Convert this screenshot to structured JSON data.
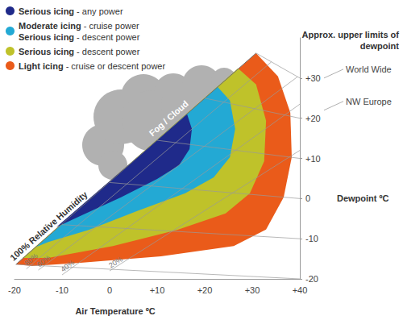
{
  "chart_data": {
    "type": "polygon",
    "xlabel": "Air Temperature ºC",
    "ylabel": "Dewpoint ºC",
    "xlim": [
      -20,
      40
    ],
    "xticks": [
      -20,
      -10,
      0,
      {
        "value": 10,
        "label": "+10"
      },
      {
        "value": 20,
        "label": "+20"
      },
      {
        "value": 30,
        "label": "+30"
      },
      {
        "value": 40,
        "label": "+40"
      }
    ],
    "ylim": [
      -20,
      40
    ],
    "yticks": [
      -20,
      -10,
      0,
      {
        "value": 10,
        "label": "+10"
      },
      {
        "value": 20,
        "label": "+20"
      },
      {
        "value": 30,
        "label": "+30"
      }
    ],
    "legend": "upper left",
    "series": [
      {
        "name": "Serious icing - any power",
        "color": "#1f2a8a",
        "points": [
          [
            -11.2,
            -7.1
          ],
          [
            16.3,
            21.0
          ],
          [
            17.3,
            17.3
          ],
          [
            16.8,
            12.3
          ],
          [
            14.6,
            8.3
          ],
          [
            10.0,
            4.9
          ],
          [
            2.4,
            0.3
          ],
          [
            -6.1,
            -4.3
          ]
        ]
      },
      {
        "name": "Moderate icing - cruise power\nSerious icing - descent power",
        "color": "#23a9d4",
        "points": [
          [
            -15.4,
            -12.0
          ],
          [
            22.7,
            27.8
          ],
          [
            25.3,
            24.4
          ],
          [
            26.4,
            17.3
          ],
          [
            25.3,
            10.3
          ],
          [
            21.9,
            5.3
          ],
          [
            15.9,
            1.3
          ],
          [
            5.8,
            -3.1
          ],
          [
            -4.4,
            -7.8
          ],
          [
            -12.9,
            -10.8
          ]
        ]
      },
      {
        "name": "Serious icing - descent power",
        "color": "#bfc22a",
        "points": [
          [
            -18.3,
            -14.8
          ],
          [
            27.0,
            32.4
          ],
          [
            30.8,
            28.4
          ],
          [
            32.9,
            19.4
          ],
          [
            32.5,
            9.3
          ],
          [
            29.5,
            1.3
          ],
          [
            24.4,
            -3.7
          ],
          [
            14.2,
            -7.8
          ],
          [
            0.7,
            -11.8
          ],
          [
            -12.9,
            -14.8
          ]
        ]
      },
      {
        "name": "Light icing - cruise or descent power",
        "color": "#ea5b1a",
        "points": [
          [
            -19.7,
            -16.4
          ],
          [
            30.8,
            36.2
          ],
          [
            35.4,
            30.4
          ],
          [
            38.0,
            21.4
          ],
          [
            38.3,
            10.3
          ],
          [
            36.6,
            0.3
          ],
          [
            32.9,
            -7.7
          ],
          [
            26.1,
            -11.8
          ],
          [
            10.8,
            -14.4
          ],
          [
            -6.1,
            -16.0
          ],
          [
            -16.3,
            -16.8
          ]
        ]
      }
    ],
    "lines": [
      {
        "label": "100% Relative Humidity",
        "points": [
          [
            -19.7,
            -16.4
          ],
          [
            30.8,
            36.2
          ]
        ]
      },
      {
        "label": "80%",
        "points": [
          [
            -17.5,
            -17.5
          ],
          [
            34,
            34
          ]
        ]
      },
      {
        "label": "60%",
        "points": [
          [
            -15,
            -17.8
          ],
          [
            39.5,
            30.3
          ]
        ]
      },
      {
        "label": "40%",
        "points": [
          [
            -10,
            -19
          ],
          [
            40,
            23.5
          ]
        ]
      },
      {
        "label": "20%",
        "points": [
          [
            0,
            -18
          ],
          [
            40,
            12
          ]
        ]
      }
    ],
    "dewpoint_lines": [
      [
        [
          40,
          -20
        ],
        [
          -19.7,
          -16.4
        ]
      ],
      [
        [
          40,
          -10
        ],
        [
          -10,
          -6.5
        ]
      ],
      [
        [
          40,
          0
        ],
        [
          0,
          4
        ]
      ],
      [
        [
          40,
          10
        ],
        [
          10,
          14.5
        ]
      ],
      [
        [
          40,
          20
        ],
        [
          20,
          25
        ]
      ],
      [
        [
          40,
          30
        ],
        [
          30.8,
          36.2
        ]
      ]
    ],
    "cloud_label": "Fog / Cloud",
    "dewpoint_limits": {
      "title": "Approx. upper limits of dewpoint",
      "items": [
        {
          "label": "World Wide",
          "value": 30
        },
        {
          "label": "NW Europe",
          "value": 22
        }
      ]
    }
  }
}
